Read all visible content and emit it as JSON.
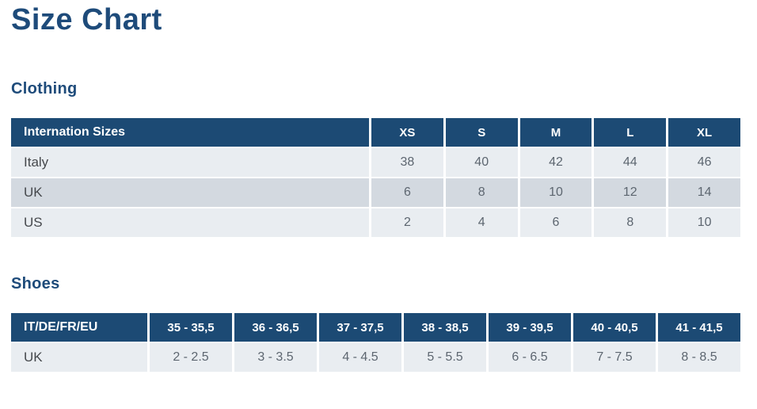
{
  "page": {
    "title": "Size Chart"
  },
  "colors": {
    "heading_navy": "#1e4b7a",
    "table_header_navy": "#1c4a74",
    "row_light": "#e9edf1",
    "row_dark": "#d3d9e0",
    "header_text": "#ffffff",
    "row_label_text": "#46494d",
    "value_text": "#5d6670"
  },
  "sections": {
    "clothing": {
      "heading": "Clothing",
      "table": {
        "header_label": "Internation Sizes",
        "columns": [
          "XS",
          "S",
          "M",
          "L",
          "XL"
        ],
        "rows": [
          {
            "label": "Italy",
            "values": [
              "38",
              "40",
              "42",
              "44",
              "46"
            ]
          },
          {
            "label": "UK",
            "values": [
              "6",
              "8",
              "10",
              "12",
              "14"
            ]
          },
          {
            "label": "US",
            "values": [
              "2",
              "4",
              "6",
              "8",
              "10"
            ]
          }
        ]
      }
    },
    "shoes": {
      "heading": "Shoes",
      "table": {
        "header_label": "IT/DE/FR/EU",
        "columns": [
          "35 - 35,5",
          "36 - 36,5",
          "37 - 37,5",
          "38 - 38,5",
          "39 - 39,5",
          "40 - 40,5",
          "41 - 41,5"
        ],
        "rows": [
          {
            "label": "UK",
            "values": [
              "2 - 2.5",
              "3 - 3.5",
              "4 - 4.5",
              "5 - 5.5",
              "6 - 6.5",
              "7 - 7.5",
              "8 - 8.5"
            ]
          }
        ]
      }
    }
  }
}
